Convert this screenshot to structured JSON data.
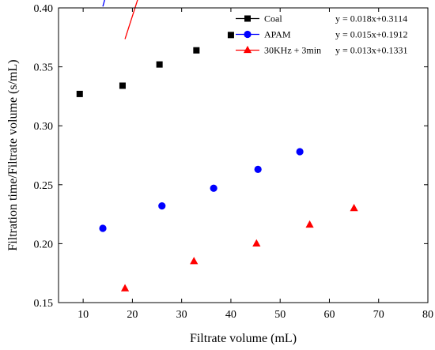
{
  "chart_data": {
    "type": "scatter",
    "xlabel": "Filtrate volume (mL)",
    "ylabel": "Filtration time/Filtrate volume (s/mL)",
    "xlim": [
      5,
      80
    ],
    "ylim": [
      0.15,
      0.4
    ],
    "xticks": [
      10,
      20,
      30,
      40,
      50,
      60,
      70,
      80
    ],
    "yticks": [
      0.15,
      0.2,
      0.25,
      0.3,
      0.35,
      0.4
    ],
    "xtick_labels": [
      "10",
      "20",
      "30",
      "40",
      "50",
      "60",
      "70",
      "80"
    ],
    "ytick_labels": [
      "0.15",
      "0.20",
      "0.25",
      "0.30",
      "0.35",
      "0.40"
    ],
    "grid": false,
    "legend_position": "top-right",
    "series": [
      {
        "name": "Coal",
        "marker": "square",
        "color": "#000000",
        "equation": "y = 0.018x+0.3114",
        "slope": 0.018,
        "intercept": 0.3114,
        "fit_range": [
          9.3,
          40
        ],
        "x": [
          9.3,
          18,
          25.5,
          33,
          40
        ],
        "y": [
          0.327,
          0.334,
          0.352,
          0.364,
          0.377
        ]
      },
      {
        "name": "APAM",
        "marker": "circle",
        "color": "#0000ff",
        "equation": "y = 0.015x+0.1912",
        "slope": 0.015,
        "intercept": 0.1912,
        "fit_range": [
          14,
          54
        ],
        "x": [
          14,
          26,
          36.5,
          45.5,
          54
        ],
        "y": [
          0.213,
          0.232,
          0.247,
          0.263,
          0.278
        ]
      },
      {
        "name": "30KHz + 3min",
        "marker": "triangle",
        "color": "#ff0000",
        "equation": "y = 0.013x+0.1331",
        "slope": 0.013,
        "intercept": 0.1331,
        "fit_range": [
          18.5,
          65
        ],
        "x": [
          18.5,
          32.5,
          45.2,
          56,
          65
        ],
        "y": [
          0.162,
          0.185,
          0.2,
          0.216,
          0.23
        ]
      }
    ]
  }
}
